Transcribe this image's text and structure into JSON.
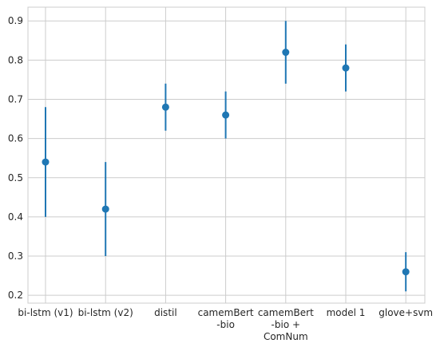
{
  "chart_data": {
    "type": "scatter",
    "title": "",
    "xlabel": "",
    "ylabel": "",
    "categories": [
      [
        "bi-lstm (v1)"
      ],
      [
        "bi-lstm (v2)"
      ],
      [
        "distil"
      ],
      [
        "camemBert",
        "-bio"
      ],
      [
        "camemBert",
        "-bio +",
        "ComNum"
      ],
      [
        "model 1"
      ],
      [
        "glove+svm"
      ]
    ],
    "series": [
      {
        "values": [
          0.54,
          0.42,
          0.68,
          0.66,
          0.82,
          0.78,
          0.26
        ],
        "error_low": [
          0.4,
          0.3,
          0.62,
          0.6,
          0.74,
          0.72,
          0.21
        ],
        "error_high": [
          0.68,
          0.54,
          0.74,
          0.72,
          0.9,
          0.84,
          0.31
        ],
        "color": "#1f77b4"
      }
    ],
    "ylim": [
      0.18,
      0.935
    ],
    "yticks": [
      0.2,
      0.3,
      0.4,
      0.5,
      0.6,
      0.7,
      0.8,
      0.9
    ],
    "grid": true,
    "legend": "none",
    "colors": {
      "grid": "#cccccc",
      "axes_edge": "#cccccc",
      "text": "#262626",
      "background": "#ffffff"
    }
  }
}
